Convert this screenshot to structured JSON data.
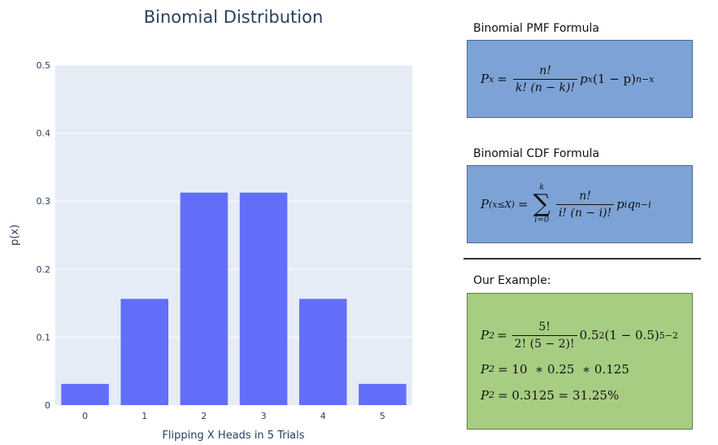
{
  "chart_data": {
    "type": "bar",
    "title": "Binomial Distribution",
    "xlabel": "Flipping X Heads in 5 Trials",
    "ylabel": "p(x)",
    "categories": [
      "0",
      "1",
      "2",
      "3",
      "4",
      "5"
    ],
    "values": [
      0.03125,
      0.15625,
      0.3125,
      0.3125,
      0.15625,
      0.03125
    ],
    "ylim": [
      0,
      0.5
    ],
    "yticks": [
      "0",
      "0.1",
      "0.2",
      "0.3",
      "0.4",
      "0.5"
    ],
    "ytick_values": [
      0,
      0.1,
      0.2,
      0.3,
      0.4,
      0.5
    ],
    "grid": true,
    "bar_color": "#636efa",
    "plot_bg": "#e5ecf6"
  },
  "pmf": {
    "heading": "Binomial PMF Formula",
    "lhs": "P",
    "lhs_sub": "x",
    "eq": "=",
    "num": "n!",
    "den": "k! (n − k)!",
    "p": "p",
    "p_exp": "x",
    "tail": "(1 − p)",
    "tail_exp": "n−x"
  },
  "cdf": {
    "heading": "Binomial CDF Formula",
    "lhs": "P",
    "lhs_sub": "(x≤X)",
    "eq": "=",
    "sum_top": "k",
    "sum_symbol": "∑",
    "sum_bottom": "i=0",
    "num": "n!",
    "den": "i! (n − i)!",
    "p": "p",
    "p_exp": "i",
    "q": "q",
    "q_exp": "n−i"
  },
  "example": {
    "heading": "Our Example:",
    "line1": {
      "lhs": "P",
      "lhs_sub": "2",
      "eq": "=",
      "num": "5!",
      "den": "2! (5 − 2)!",
      "base": "0.5",
      "base_exp": "2",
      "tail": "(1 − 0.5)",
      "tail_exp": "5−2"
    },
    "line2": {
      "lhs": "P",
      "lhs_sub": "2",
      "rhs": "= 10  ∗ 0.25  ∗ 0.125"
    },
    "line3": {
      "lhs": "P",
      "lhs_sub": "2",
      "rhs": "= 0.3125 = 31.25%"
    }
  }
}
